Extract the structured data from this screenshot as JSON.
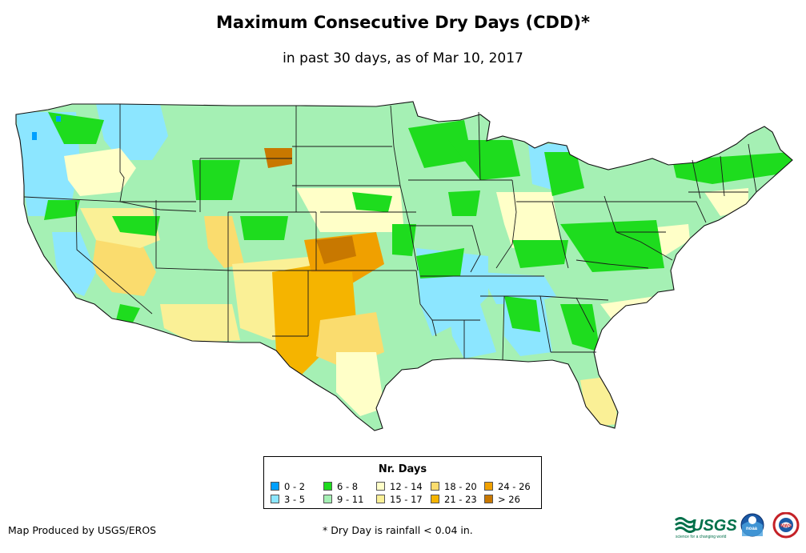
{
  "title": "Maximum Consecutive Dry Days (CDD)*",
  "subtitle": "in past 30 days, as of Mar 10, 2017",
  "legend": {
    "title": "Nr. Days",
    "items": [
      {
        "label": "0 - 2",
        "color": "#00a0ff"
      },
      {
        "label": "3 - 5",
        "color": "#8ce6ff"
      },
      {
        "label": "6 - 8",
        "color": "#1edc1e"
      },
      {
        "label": "9 - 11",
        "color": "#a5f0b4"
      },
      {
        "label": "12 - 14",
        "color": "#ffffc8"
      },
      {
        "label": "15 - 17",
        "color": "#faf096"
      },
      {
        "label": "18 - 20",
        "color": "#fadc6e"
      },
      {
        "label": "21 - 23",
        "color": "#f5b400"
      },
      {
        "label": "24 - 26",
        "color": "#f0a000"
      },
      {
        "label": "> 26",
        "color": "#c87800"
      }
    ]
  },
  "footer": {
    "credit": "Map Produced by USGS/EROS",
    "note": "* Dry Day is rainfall < 0.04 in."
  },
  "logos": {
    "usgs_text": "USGS",
    "usgs_tagline": "science for a changing world",
    "noaa_text": "noaa",
    "nws_text": "NWS"
  }
}
